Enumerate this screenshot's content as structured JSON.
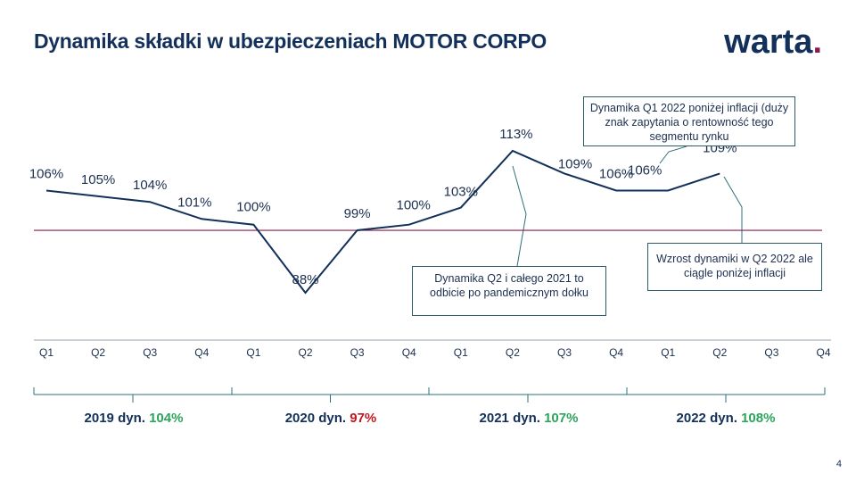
{
  "title": "Dynamika składki w ubezpieczeniach MOTOR CORPO",
  "logo": {
    "text": "warta",
    "dot": "."
  },
  "page_number": "4",
  "chart_data": {
    "type": "line",
    "categories": [
      "Q1",
      "Q2",
      "Q3",
      "Q4",
      "Q1",
      "Q2",
      "Q3",
      "Q4",
      "Q1",
      "Q2",
      "Q3",
      "Q4",
      "Q1",
      "Q2",
      "Q3",
      "Q4"
    ],
    "values": [
      106,
      105,
      104,
      101,
      100,
      88,
      99,
      100,
      103,
      113,
      109,
      106,
      106,
      109,
      null,
      null
    ],
    "labels": [
      "106%",
      "105%",
      "104%",
      "101%",
      "100%",
      "88%",
      "99%",
      "100%",
      "103%",
      "113%",
      "109%",
      "106%",
      "106%",
      "109%",
      "",
      ""
    ],
    "reference_line": 99,
    "ylim": [
      80,
      120
    ],
    "colors": {
      "line": "#13305a",
      "reference": "#8a1a4b",
      "axis": "#9aa3ad",
      "brackets": "#2d6f7a"
    }
  },
  "annotations": [
    {
      "text": "Dynamika Q1 2022 poniżej inflacji (duży znak zapytania o rentowność tego segmentu rynku"
    },
    {
      "text": "Dynamika Q2 i całego 2021 to odbicie po pandemicznym dołku"
    },
    {
      "text": "Wzrost dynamiki w Q2 2022 ale ciągle poniżej inflacji"
    }
  ],
  "years": [
    {
      "label": "2019 dyn. ",
      "value": "104%",
      "status": "good"
    },
    {
      "label": "2020 dyn. ",
      "value": "97%",
      "status": "bad"
    },
    {
      "label": "2021 dyn. ",
      "value": "107%",
      "status": "good"
    },
    {
      "label": "2022 dyn. ",
      "value": "108%",
      "status": "good"
    }
  ]
}
